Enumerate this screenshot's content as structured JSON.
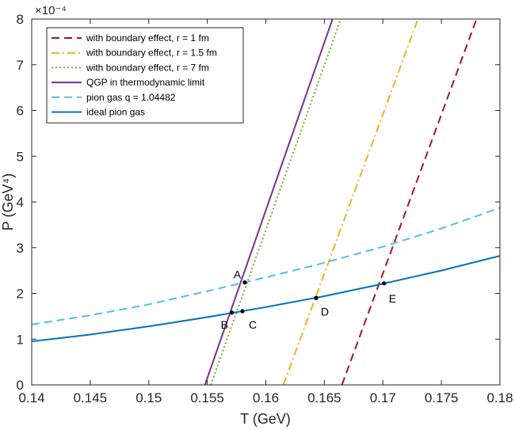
{
  "chart_data": {
    "type": "line",
    "xlabel": "T (GeV)",
    "ylabel": "P (GeV⁴)",
    "y_exponent_label": "×10⁻⁴",
    "xlim": [
      0.14,
      0.18
    ],
    "ylim": [
      0,
      8
    ],
    "x_ticks": [
      0.14,
      0.145,
      0.15,
      0.155,
      0.16,
      0.165,
      0.17,
      0.175,
      0.18
    ],
    "x_tick_labels": [
      "0.14",
      "0.145",
      "0.15",
      "0.155",
      "0.16",
      "0.165",
      "0.17",
      "0.175",
      "0.18"
    ],
    "y_ticks": [
      0,
      1,
      2,
      3,
      4,
      5,
      6,
      7,
      8
    ],
    "y_tick_labels": [
      "0",
      "1",
      "2",
      "3",
      "4",
      "5",
      "6",
      "7",
      "8"
    ],
    "grid": false,
    "legend_position": "top-left",
    "series": [
      {
        "name": "with boundary effect, r = 1 fm",
        "color": "#A2142F",
        "dash": "dashed",
        "x": [
          0.1665,
          0.178
        ],
        "y": [
          0.0,
          8.0
        ]
      },
      {
        "name": "with boundary effect, r = 1.5 fm",
        "color": "#EDB120",
        "dash": "dashdot",
        "x": [
          0.1615,
          0.173
        ],
        "y": [
          0.0,
          8.0
        ]
      },
      {
        "name": "with boundary effect, r = 7 fm",
        "color": "#77AC30",
        "dash": "dotted",
        "x": [
          0.1553,
          0.1664
        ],
        "y": [
          0.0,
          8.0
        ]
      },
      {
        "name": "QGP in thermodynamic limit",
        "color": "#7E2F8E",
        "dash": "solid",
        "x": [
          0.1548,
          0.1657
        ],
        "y": [
          0.0,
          8.0
        ]
      },
      {
        "name": "pion gas q = 1.04482",
        "color": "#4DBEEE",
        "dash": "dashed",
        "x": [
          0.14,
          0.145,
          0.15,
          0.155,
          0.16,
          0.165,
          0.17,
          0.175,
          0.18
        ],
        "y": [
          1.32,
          1.52,
          1.76,
          2.05,
          2.35,
          2.67,
          3.02,
          3.42,
          3.87
        ]
      },
      {
        "name": "ideal pion gas",
        "color": "#0072BD",
        "dash": "solid",
        "x": [
          0.14,
          0.145,
          0.15,
          0.155,
          0.16,
          0.165,
          0.17,
          0.175,
          0.18
        ],
        "y": [
          0.95,
          1.1,
          1.28,
          1.48,
          1.7,
          1.94,
          2.21,
          2.5,
          2.82
        ]
      }
    ],
    "points": [
      {
        "label": "A",
        "x": 0.1582,
        "y": 2.24,
        "label_dx": -14,
        "label_dy": -5
      },
      {
        "label": "B",
        "x": 0.1571,
        "y": 1.58,
        "label_dx": -14,
        "label_dy": 20
      },
      {
        "label": "C",
        "x": 0.158,
        "y": 1.61,
        "label_dx": 8,
        "label_dy": 22
      },
      {
        "label": "D",
        "x": 0.1643,
        "y": 1.9,
        "label_dx": 6,
        "label_dy": 22
      },
      {
        "label": "E",
        "x": 0.1701,
        "y": 2.22,
        "label_dx": 6,
        "label_dy": 24
      }
    ]
  }
}
